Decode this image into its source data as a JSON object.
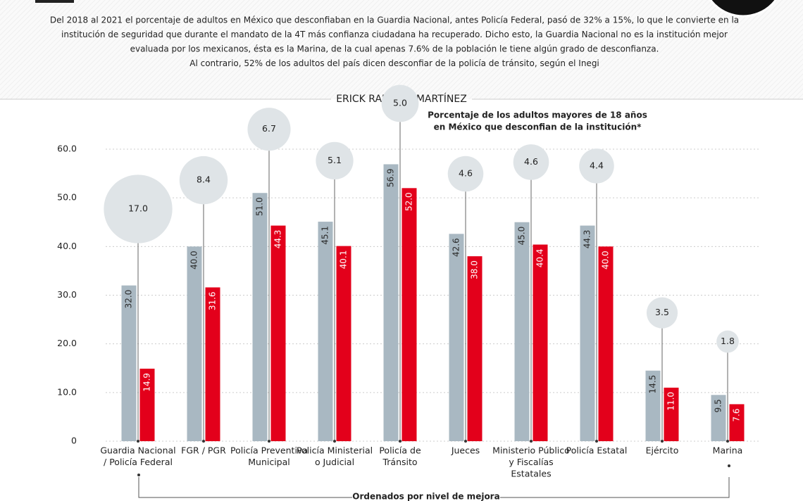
{
  "header": {
    "paragraph": [
      "Del 2018 al 2021 el porcentaje de adultos en México que desconfiaban en la Guardia Nacional, antes Policía Federal, pasó de 32% a 15%, lo que le convierte en la",
      "institución de seguridad que durante el mandato de la 4T más confianza ciudadana ha recuperado.  Dicho esto, la Guardia Nacional no es la institución mejor",
      "evaluada por los mexicanos, ésta es la Marina, de la cual apenas 7.6% de la población le tiene algún grado de desconfianza.",
      "Al contrario, 52% de los adultos del país dicen desconfiar de la policía de tránsito, según el Inegi"
    ],
    "author": "ERICK RAMÍREZ MARTÍNEZ"
  },
  "chart_data": {
    "type": "bar",
    "subtitle": [
      "Porcentaje de los adultos mayores de 18 años",
      "en México que desconfian de la institución*"
    ],
    "categories": [
      [
        "Guardia Nacional",
        "/ Policía Federal"
      ],
      [
        "FGR / PGR"
      ],
      [
        "Policía Preventiva",
        "Municipal"
      ],
      [
        "Policía Ministerial",
        "o Judicial"
      ],
      [
        "Policía de",
        "Tránsito"
      ],
      [
        "Jueces"
      ],
      [
        "Ministerio Público",
        "y Fiscalías",
        "Estatales"
      ],
      [
        "Policía Estatal"
      ],
      [
        "Ejército"
      ],
      [
        "Marina"
      ]
    ],
    "series": [
      {
        "color": "#a9b8c2",
        "label_color": "#2b2b2b",
        "values": [
          32.0,
          40.0,
          51.0,
          45.1,
          56.9,
          42.6,
          45.0,
          44.3,
          14.5,
          9.5
        ],
        "value_labels": [
          "32.0",
          "40.0",
          "51.0",
          "45.1",
          "56.9",
          "42.6",
          "45.0",
          "44.3",
          "14.5",
          "9.5"
        ]
      },
      {
        "color": "#e3001b",
        "label_color": "#ffffff",
        "values": [
          14.9,
          31.6,
          44.3,
          40.1,
          52.0,
          38.0,
          40.4,
          40.0,
          11.0,
          7.6
        ],
        "value_labels": [
          "14.9",
          "31.6",
          "44.3",
          "40.1",
          "52.0",
          "38.0",
          "40.4",
          "40.0",
          "11.0",
          "7.6"
        ]
      }
    ],
    "bubbles": {
      "color": "#dfe4e7",
      "values": [
        17.0,
        8.4,
        6.7,
        5.1,
        5.0,
        4.6,
        4.6,
        4.4,
        3.5,
        1.8
      ],
      "value_labels": [
        "17.0",
        "8.4",
        "6.7",
        "5.1",
        "5.0",
        "4.6",
        "4.6",
        "4.4",
        "3.5",
        "1.8"
      ]
    },
    "ylim": [
      0,
      60
    ],
    "yticks": [
      0,
      {
        "value": 10,
        "label": "10.0"
      },
      {
        "value": 20,
        "label": "20.0"
      },
      {
        "value": 30,
        "label": "30.0"
      },
      {
        "value": 40,
        "label": "40.0"
      },
      {
        "value": 50,
        "label": "50.0"
      },
      {
        "value": 60,
        "label": "60.0"
      }
    ],
    "grid": true,
    "footer": "Ordenados por nivel de mejora"
  }
}
